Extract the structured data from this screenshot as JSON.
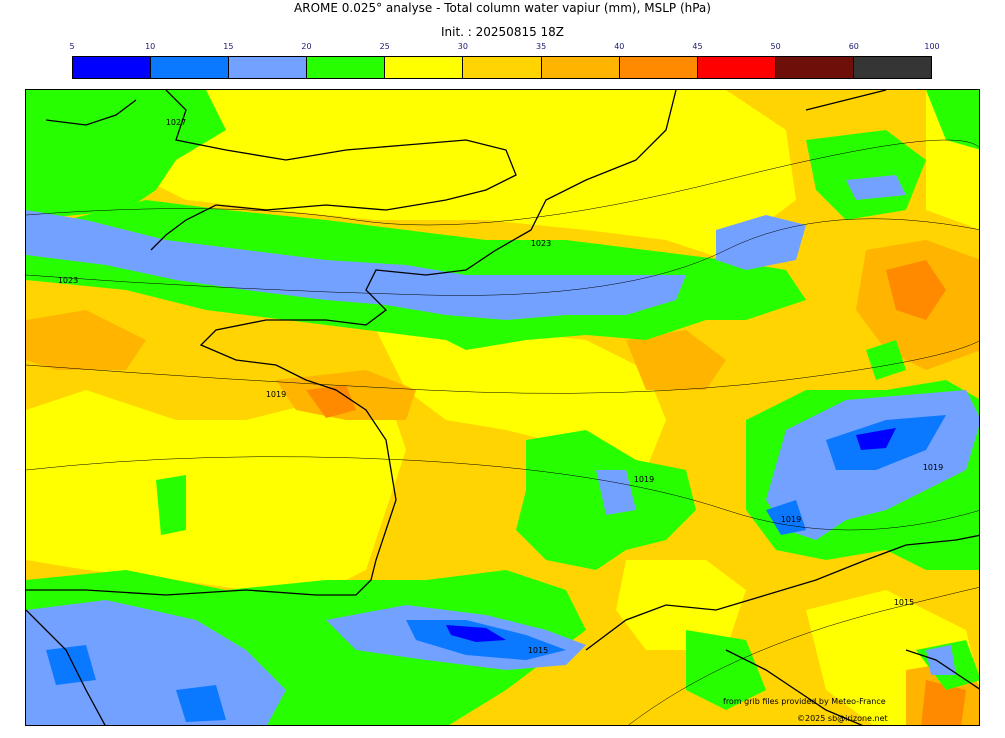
{
  "title": "AROME 0.025° analyse - Total column water vapiur (mm), MSLP (hPa)",
  "subtitle": "Init. : 20250815 18Z",
  "colorbar": {
    "ticks": [
      "5",
      "10",
      "15",
      "20",
      "25",
      "30",
      "35",
      "40",
      "45",
      "50",
      "60",
      "100"
    ],
    "colors": [
      "#0000ff",
      "#0a78ff",
      "#73a1ff",
      "#27ff00",
      "#ffff00",
      "#ffd400",
      "#ffb400",
      "#ff8a00",
      "#ff0000",
      "#6e0f0a",
      "#353535"
    ]
  },
  "isobar_labels": [
    "1027",
    "1023",
    "1023",
    "1019",
    "1019",
    "1019",
    "1019",
    "1015",
    "1015"
  ],
  "credits": {
    "source": "from grib files provided by Meteo-France",
    "copyright": "©2025 sb@irizone.net"
  }
}
